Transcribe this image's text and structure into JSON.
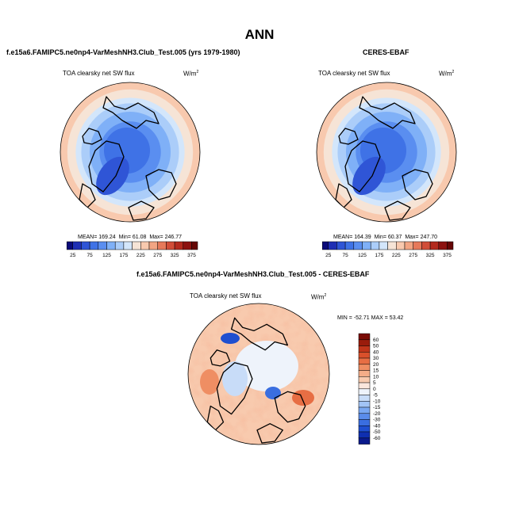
{
  "title": "ANN",
  "panels": {
    "model": {
      "title": "f.e15a6.FAMIPC5.ne0np4-VarMeshNH3.Club_Test.005 (yrs 1979-1980)",
      "variable": "TOA clearsky net SW flux",
      "units": "W/m",
      "units_sup": "2",
      "mean_label": "MEAN=",
      "mean": "169.24",
      "min_label": "Min=",
      "min": "61.08",
      "max_label": "Max=",
      "max": "246.77"
    },
    "obs": {
      "title": "CERES-EBAF",
      "variable": "TOA clearsky net SW flux",
      "units": "W/m",
      "units_sup": "2",
      "mean_label": "MEAN=",
      "mean": "164.39",
      "min_label": "Min=",
      "min": "60.37",
      "max_label": "Max=",
      "max": "247.70"
    },
    "diff": {
      "title": "f.e15a6.FAMIPC5.ne0np4-VarMeshNH3.Club_Test.005 - CERES-EBAF",
      "variable": "TOA clearsky net SW flux",
      "units": "W/m",
      "units_sup": "2",
      "min_label": "MIN =",
      "min": "-52.71",
      "max_label": "MAX =",
      "max": "53.42"
    }
  },
  "chart_data": [
    {
      "type": "heatmap",
      "projection": "north polar stereographic",
      "title": "f.e15a6.FAMIPC5.ne0np4-VarMeshNH3.Club_Test.005 (yrs 1979-1980)",
      "variable": "TOA clearsky net SW flux",
      "units": "W/m2",
      "stats": {
        "mean": 169.24,
        "min": 61.08,
        "max": 246.77
      },
      "colorbar": {
        "orientation": "horizontal",
        "levels": [
          25,
          50,
          75,
          100,
          125,
          150,
          175,
          200,
          225,
          250,
          275,
          300,
          325,
          350,
          375
        ],
        "tick_labels": [
          "25",
          "75",
          "125",
          "175",
          "225",
          "275",
          "325",
          "375"
        ],
        "colors": [
          "#0b0b7a",
          "#1f2fb4",
          "#2f55d6",
          "#3f72e6",
          "#5a8ef0",
          "#7fb0f7",
          "#abcdf9",
          "#d3e6fb",
          "#f6e4d6",
          "#f8c9ae",
          "#f2a583",
          "#e6795a",
          "#d14d38",
          "#b32a1e",
          "#8c1210",
          "#650605"
        ]
      }
    },
    {
      "type": "heatmap",
      "projection": "north polar stereographic",
      "title": "CERES-EBAF",
      "variable": "TOA clearsky net SW flux",
      "units": "W/m2",
      "stats": {
        "mean": 164.39,
        "min": 60.37,
        "max": 247.7
      },
      "colorbar": {
        "orientation": "horizontal",
        "levels": [
          25,
          50,
          75,
          100,
          125,
          150,
          175,
          200,
          225,
          250,
          275,
          300,
          325,
          350,
          375
        ],
        "tick_labels": [
          "25",
          "75",
          "125",
          "175",
          "225",
          "275",
          "325",
          "375"
        ],
        "colors": [
          "#0b0b7a",
          "#1f2fb4",
          "#2f55d6",
          "#3f72e6",
          "#5a8ef0",
          "#7fb0f7",
          "#abcdf9",
          "#d3e6fb",
          "#f6e4d6",
          "#f8c9ae",
          "#f2a583",
          "#e6795a",
          "#d14d38",
          "#b32a1e",
          "#8c1210",
          "#650605"
        ]
      }
    },
    {
      "type": "heatmap",
      "projection": "north polar stereographic",
      "title": "f.e15a6.FAMIPC5.ne0np4-VarMeshNH3.Club_Test.005 - CERES-EBAF",
      "variable": "TOA clearsky net SW flux",
      "units": "W/m2",
      "stats": {
        "min": -52.71,
        "max": 53.42
      },
      "colorbar": {
        "orientation": "vertical",
        "levels": [
          -60,
          -50,
          -40,
          -30,
          -20,
          -15,
          -10,
          -5,
          0,
          5,
          10,
          15,
          20,
          30,
          40,
          50,
          60
        ],
        "tick_labels": [
          "60",
          "50",
          "40",
          "30",
          "20",
          "15",
          "10",
          "5",
          "0",
          "-5",
          "-10",
          "-15",
          "-20",
          "-30",
          "-40",
          "-50",
          "-60"
        ],
        "colors": [
          "#0a1a8c",
          "#0f2fb0",
          "#1f4fd0",
          "#3a6ee0",
          "#5a8cea",
          "#7aa8f2",
          "#a2c4f6",
          "#c8dcf8",
          "#eef3fb",
          "#fbe6dc",
          "#f8caae",
          "#f4ad88",
          "#ef8e63",
          "#e76e44",
          "#d9502b",
          "#c0351a",
          "#9a1c0c",
          "#7a0b05"
        ]
      }
    }
  ]
}
